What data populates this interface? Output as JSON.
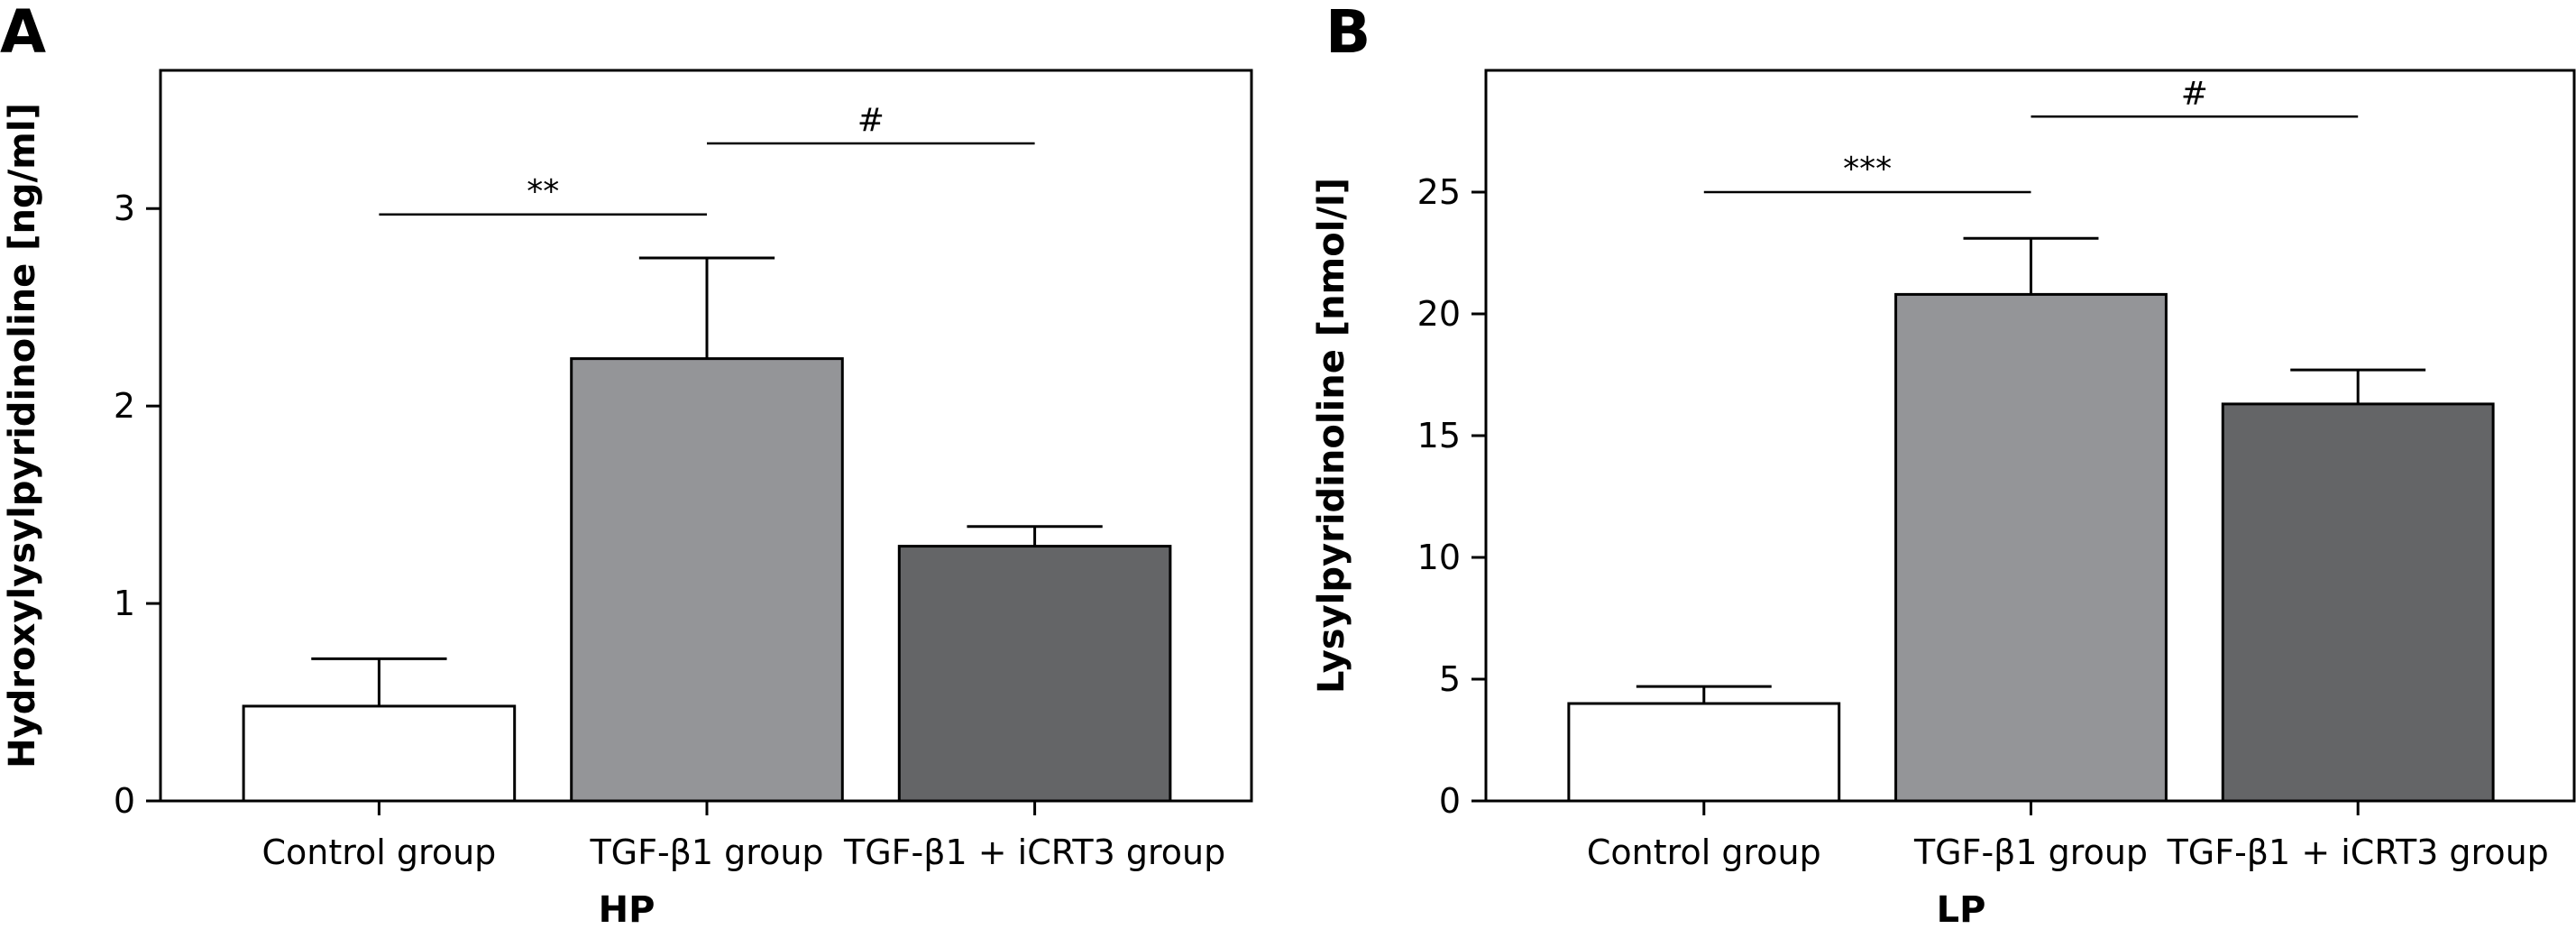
{
  "chart_data": [
    {
      "type": "bar",
      "panel": "A",
      "title": "",
      "xlabel": "HP",
      "ylabel": "Hydroxylysylpyridinoline [ng/ml]",
      "categories": [
        "Control group",
        "TGF-β1 group",
        "TGF-β1 + iCRT3 group"
      ],
      "values": [
        0.48,
        2.24,
        1.29
      ],
      "error_upper": [
        0.72,
        2.75,
        1.39
      ],
      "bar_colors": [
        "#ffffff",
        "#949598",
        "#646567"
      ],
      "ylim": [
        0,
        3.7
      ],
      "yticks": [
        0,
        1,
        2,
        3
      ],
      "ytick_labels": [
        "0",
        "1",
        "2",
        "3"
      ],
      "grid": false,
      "significance": [
        {
          "from": 0,
          "to": 1,
          "label": "**",
          "y": 2.97
        },
        {
          "from": 1,
          "to": 2,
          "label": "#",
          "y": 3.33
        }
      ]
    },
    {
      "type": "bar",
      "panel": "B",
      "title": "",
      "xlabel": "LP",
      "ylabel": "Lysylpyridinoline [nmol/l]",
      "categories": [
        "Control group",
        "TGF-β1 group",
        "TGF-β1 + iCRT3 group"
      ],
      "values": [
        4.0,
        20.8,
        16.3
      ],
      "error_upper": [
        4.7,
        23.1,
        17.7
      ],
      "bar_colors": [
        "#ffffff",
        "#949598",
        "#646567"
      ],
      "ylim": [
        0,
        30
      ],
      "yticks": [
        0,
        5,
        10,
        15,
        20,
        25
      ],
      "ytick_labels": [
        "0",
        "5",
        "10",
        "15",
        "20",
        "25"
      ],
      "grid": false,
      "significance": [
        {
          "from": 0,
          "to": 1,
          "label": "***",
          "y": 25.0
        },
        {
          "from": 1,
          "to": 2,
          "label": "#",
          "y": 28.1
        }
      ]
    }
  ]
}
